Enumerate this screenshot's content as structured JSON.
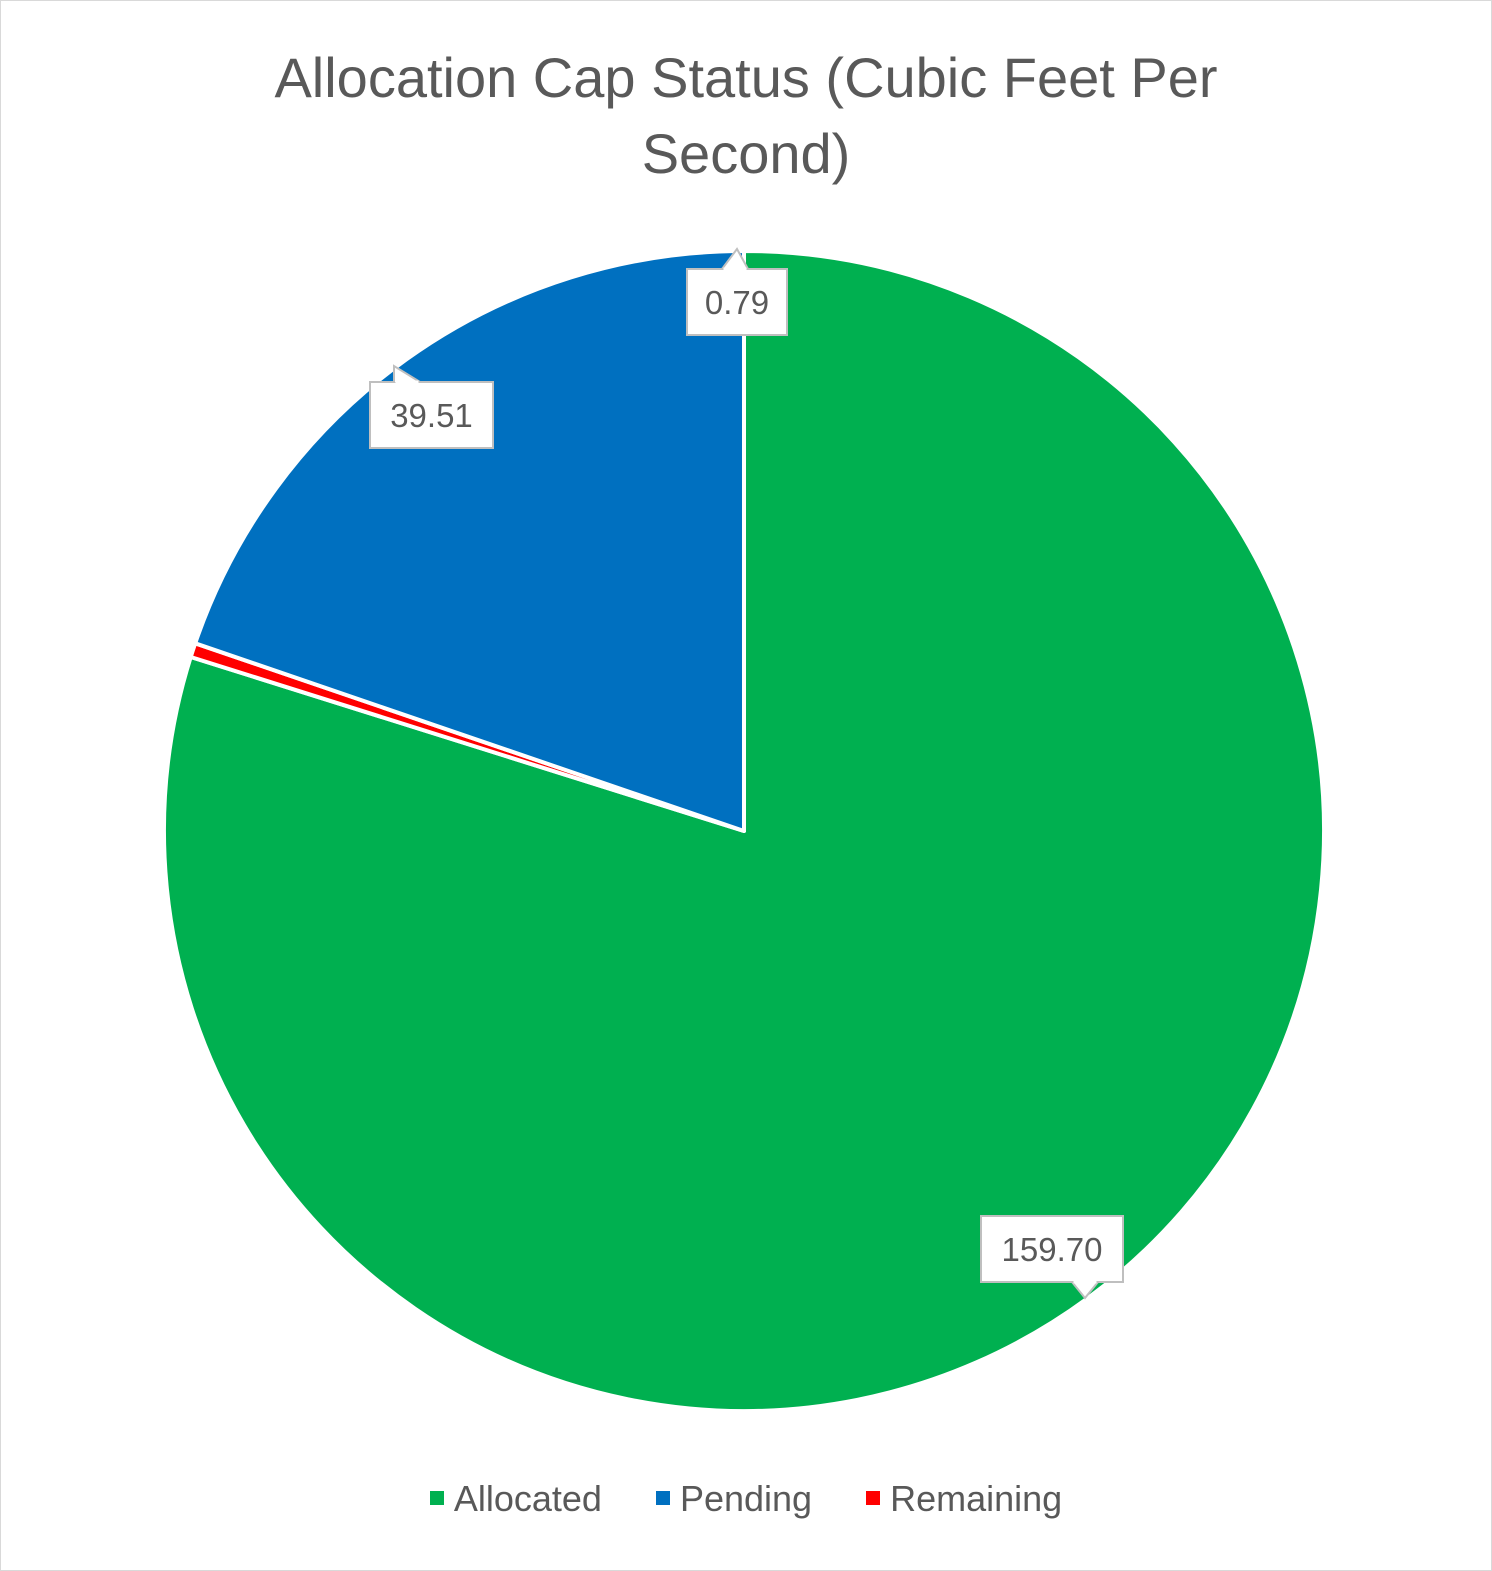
{
  "chart_data": {
    "type": "pie",
    "title_lines": [
      "Allocation Cap Status (Cubic Feet Per",
      "Second)"
    ],
    "slices": [
      {
        "name": "Allocated",
        "value": 159.7,
        "label": "159.70",
        "color": "#00b050"
      },
      {
        "name": "Remaining",
        "value": 0.79,
        "label": "0.79",
        "color": "#ff0000"
      },
      {
        "name": "Pending",
        "value": 39.51,
        "label": "39.51",
        "color": "#0070c0"
      }
    ],
    "legend": {
      "placement": "bottom",
      "entries": [
        {
          "name": "Allocated",
          "color": "#00b050"
        },
        {
          "name": "Pending",
          "color": "#0070c0"
        },
        {
          "name": "Remaining",
          "color": "#ff0000"
        }
      ]
    },
    "start_angle": "top",
    "direction": "clockwise",
    "data_labels": "callouts"
  }
}
